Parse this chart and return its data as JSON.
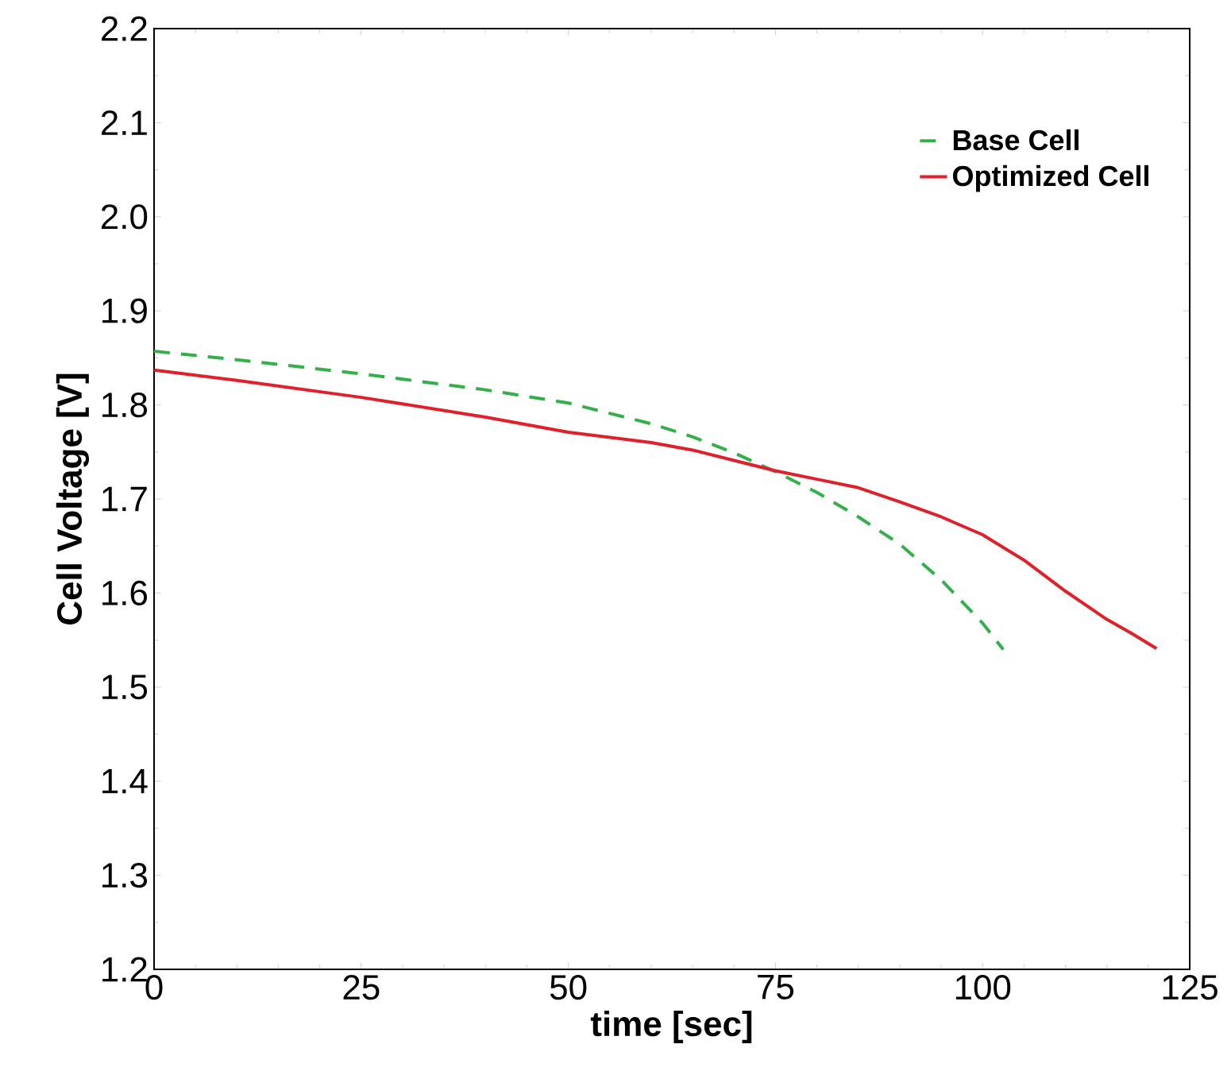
{
  "chart_data": {
    "type": "line",
    "xlabel": "time [sec]",
    "ylabel": "Cell Voltage [V]",
    "xlim": [
      0,
      125
    ],
    "ylim": [
      1.2,
      2.2
    ],
    "xticks": [
      0,
      25,
      50,
      75,
      100,
      125
    ],
    "yticks": [
      1.2,
      1.3,
      1.4,
      1.5,
      1.6,
      1.7,
      1.8,
      1.9,
      {
        "value": 2.0,
        "label": "2.0"
      },
      2.1,
      2.2
    ],
    "legend": "top right",
    "marker": "none",
    "series": [
      {
        "name": "Base Cell",
        "color": "#33b04a",
        "line_style": "dashed",
        "x": [
          0,
          10,
          25,
          40,
          50,
          60,
          65,
          70,
          75,
          80,
          85,
          90,
          95,
          100,
          102.5
        ],
        "values": [
          1.857,
          1.848,
          1.833,
          1.816,
          1.802,
          1.78,
          1.766,
          1.749,
          1.729,
          1.707,
          1.681,
          1.652,
          1.614,
          1.568,
          1.54
        ]
      },
      {
        "name": "Optimized Cell",
        "color": "#e0202a",
        "line_style": "solid",
        "x": [
          0,
          10,
          25,
          40,
          50,
          60,
          65,
          70,
          75,
          80,
          85,
          90,
          95,
          100,
          105,
          110,
          115,
          118,
          121
        ],
        "values": [
          1.837,
          1.826,
          1.808,
          1.787,
          1.771,
          1.76,
          1.752,
          1.741,
          1.73,
          1.721,
          1.712,
          1.697,
          1.681,
          1.662,
          1.635,
          1.602,
          1.572,
          1.557,
          1.541
        ]
      }
    ]
  }
}
